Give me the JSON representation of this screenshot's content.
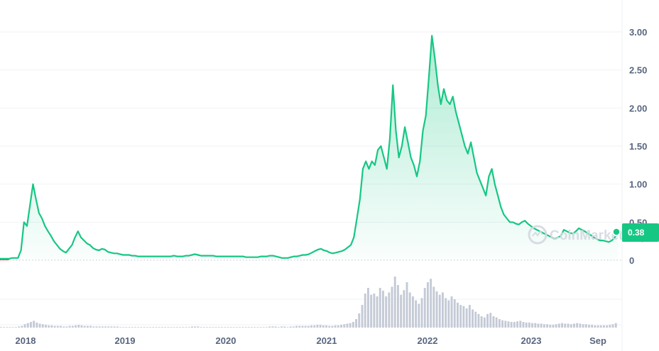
{
  "chart_data": {
    "type": "area",
    "x_labels": [
      "2018",
      "2019",
      "2020",
      "2021",
      "2022",
      "2023",
      "Sep"
    ],
    "y_ticks": [
      "0",
      "0.50",
      "1.00",
      "1.50",
      "2.00",
      "2.50",
      "3.00"
    ],
    "ylim": [
      0,
      3.3
    ],
    "current_price_label": "0.38",
    "current_price": 0.38,
    "watermark": "CoinMarketCap",
    "grid": true,
    "colors": {
      "line": "#16c784",
      "down_line": "#ea3943",
      "fill": "#16c784",
      "volume": "#c4cad6",
      "text": "#58667e",
      "grid": "#eff2f5"
    },
    "series": [
      {
        "values": [
          0.02,
          0.02,
          0.02,
          0.02,
          0.03,
          0.03,
          0.03,
          0.13,
          0.5,
          0.45,
          0.72,
          1.0,
          0.8,
          0.62,
          0.55,
          0.45,
          0.38,
          0.32,
          0.25,
          0.2,
          0.15,
          0.12,
          0.1,
          0.15,
          0.2,
          0.3,
          0.38,
          0.3,
          0.26,
          0.22,
          0.2,
          0.16,
          0.14,
          0.13,
          0.15,
          0.14,
          0.11,
          0.1,
          0.09,
          0.09,
          0.08,
          0.07,
          0.07,
          0.07,
          0.06,
          0.06,
          0.05,
          0.05,
          0.05,
          0.05,
          0.05,
          0.05,
          0.05,
          0.05,
          0.05,
          0.05,
          0.05,
          0.05,
          0.06,
          0.05,
          0.05,
          0.05,
          0.06,
          0.06,
          0.07,
          0.08,
          0.07,
          0.06,
          0.06,
          0.06,
          0.06,
          0.06,
          0.05,
          0.05,
          0.05,
          0.05,
          0.05,
          0.05,
          0.05,
          0.05,
          0.05,
          0.05,
          0.04,
          0.04,
          0.04,
          0.04,
          0.04,
          0.05,
          0.05,
          0.05,
          0.06,
          0.06,
          0.05,
          0.04,
          0.03,
          0.03,
          0.03,
          0.04,
          0.05,
          0.05,
          0.06,
          0.07,
          0.07,
          0.08,
          0.1,
          0.12,
          0.14,
          0.15,
          0.13,
          0.12,
          0.1,
          0.09,
          0.1,
          0.11,
          0.12,
          0.14,
          0.17,
          0.2,
          0.3,
          0.55,
          0.8,
          1.2,
          1.3,
          1.2,
          1.3,
          1.25,
          1.45,
          1.5,
          1.35,
          1.2,
          1.6,
          2.3,
          1.7,
          1.35,
          1.5,
          1.75,
          1.55,
          1.35,
          1.25,
          1.1,
          1.3,
          1.7,
          1.9,
          2.4,
          2.95,
          2.65,
          2.3,
          2.05,
          2.25,
          2.1,
          2.05,
          2.15,
          1.95,
          1.8,
          1.65,
          1.5,
          1.4,
          1.55,
          1.35,
          1.15,
          1.05,
          0.95,
          0.85,
          1.1,
          1.2,
          1.0,
          0.85,
          0.7,
          0.6,
          0.55,
          0.5,
          0.5,
          0.48,
          0.47,
          0.5,
          0.52,
          0.48,
          0.45,
          0.42,
          0.4,
          0.38,
          0.36,
          0.34,
          0.32,
          0.3,
          0.28,
          0.3,
          0.32,
          0.4,
          0.38,
          0.36,
          0.35,
          0.38,
          0.42,
          0.4,
          0.38,
          0.35,
          0.33,
          0.3,
          0.28,
          0.26,
          0.26,
          0.25,
          0.24,
          0.26,
          0.3,
          0.38
        ]
      }
    ],
    "volume": [
      1,
      1,
      1,
      1,
      1,
      1,
      2,
      3,
      6,
      8,
      10,
      12,
      9,
      7,
      6,
      5,
      4,
      4,
      3,
      3,
      3,
      2,
      2,
      3,
      3,
      4,
      5,
      4,
      3,
      3,
      3,
      2,
      2,
      2,
      2,
      2,
      2,
      2,
      2,
      2,
      1,
      1,
      1,
      1,
      1,
      1,
      1,
      1,
      1,
      1,
      1,
      1,
      1,
      1,
      1,
      1,
      1,
      1,
      1,
      1,
      1,
      1,
      1,
      1,
      2,
      2,
      2,
      1,
      1,
      1,
      1,
      1,
      1,
      1,
      1,
      1,
      1,
      1,
      1,
      1,
      1,
      1,
      1,
      1,
      1,
      1,
      1,
      1,
      1,
      1,
      2,
      2,
      2,
      1,
      2,
      2,
      1,
      2,
      2,
      3,
      3,
      3,
      3,
      3,
      4,
      4,
      5,
      5,
      4,
      4,
      3,
      3,
      4,
      4,
      5,
      6,
      7,
      8,
      10,
      15,
      25,
      40,
      60,
      70,
      58,
      60,
      55,
      70,
      65,
      55,
      62,
      72,
      90,
      75,
      58,
      66,
      80,
      62,
      55,
      48,
      42,
      52,
      70,
      80,
      86,
      72,
      64,
      58,
      62,
      52,
      48,
      55,
      50,
      44,
      40,
      38,
      34,
      40,
      32,
      28,
      24,
      20,
      18,
      24,
      26,
      20,
      18,
      15,
      13,
      12,
      11,
      10,
      10,
      11,
      12,
      10,
      9,
      9,
      8,
      8,
      7,
      7,
      6,
      6,
      5,
      5,
      6,
      7,
      8,
      7,
      7,
      6,
      7,
      8,
      7,
      6,
      6,
      5,
      5,
      4,
      4,
      4,
      4,
      4,
      5,
      6,
      8
    ]
  }
}
